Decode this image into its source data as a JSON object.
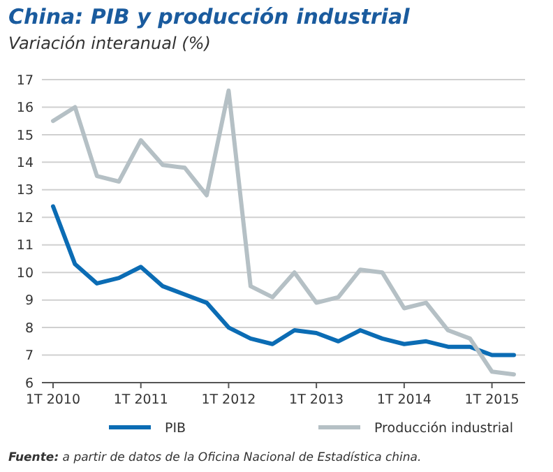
{
  "chart_data": {
    "type": "line",
    "title": "China: PIB y producción industrial",
    "subtitle": "Variación interanual (%)",
    "categories": [
      "1T 2010",
      null,
      null,
      null,
      "1T 2011",
      null,
      null,
      null,
      "1T 2012",
      null,
      null,
      null,
      "1T 2013",
      null,
      null,
      null,
      "1T 2014",
      null,
      null,
      null,
      "1T 2015",
      null
    ],
    "series": [
      {
        "name": "PIB",
        "color": "#0b6cb4",
        "values": [
          12.4,
          10.3,
          9.6,
          9.8,
          10.2,
          9.5,
          9.2,
          8.9,
          8.0,
          7.6,
          7.4,
          7.9,
          7.8,
          7.5,
          7.9,
          7.6,
          7.4,
          7.5,
          7.3,
          7.3,
          7.0,
          7.0
        ]
      },
      {
        "name": "Producción industrial",
        "color": "#b5c0c5",
        "values": [
          15.5,
          16.0,
          13.5,
          13.3,
          14.8,
          13.9,
          13.8,
          12.8,
          16.6,
          9.5,
          9.1,
          10.0,
          8.9,
          9.1,
          10.1,
          10.0,
          8.7,
          8.9,
          7.9,
          7.6,
          6.4,
          6.3
        ]
      }
    ],
    "ylim": [
      6,
      17
    ],
    "yticks": [
      6,
      7,
      8,
      9,
      10,
      11,
      12,
      13,
      14,
      15,
      16,
      17
    ],
    "grid": "y",
    "legend": "bottom",
    "annotations": [
      "Fuente: a partir de datos de la Oficina Nacional de Estadística china."
    ]
  }
}
